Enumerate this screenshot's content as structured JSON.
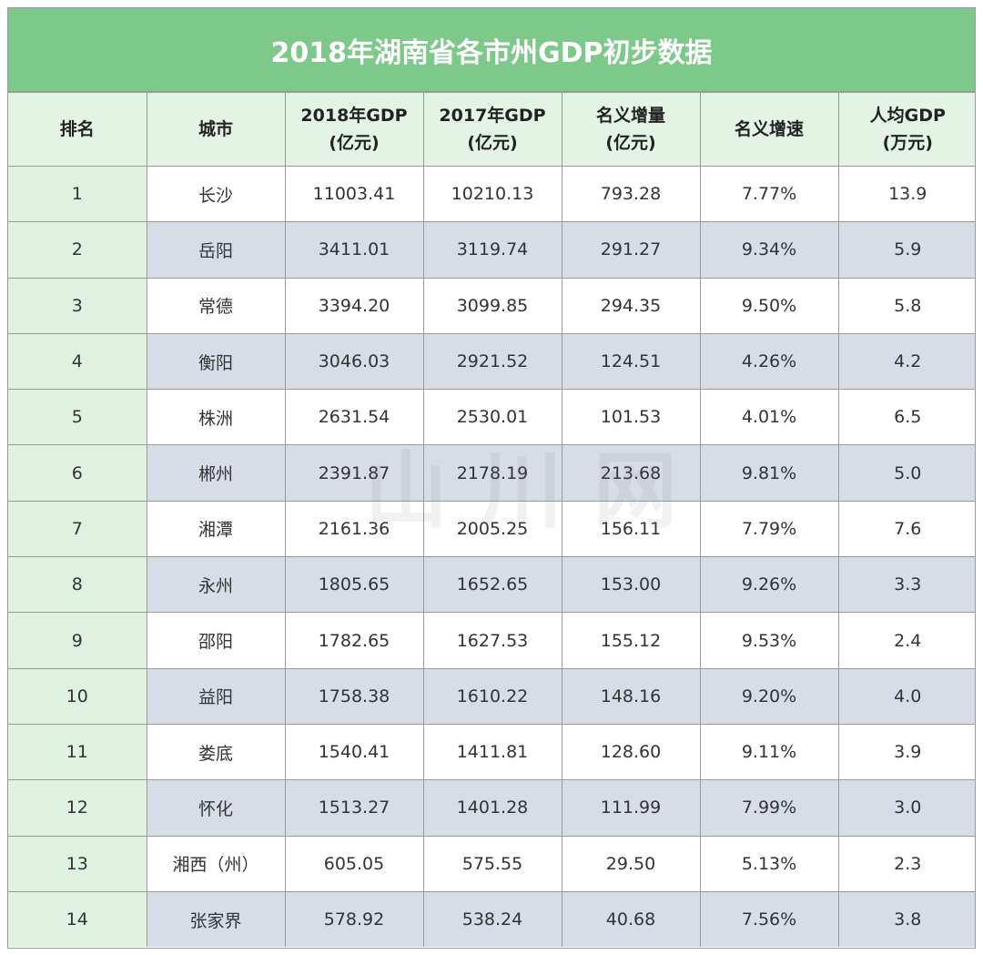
{
  "title": "2018年湖南省各市州GDP初步数据",
  "headers": [
    {
      "line1": "排名",
      "line2": ""
    },
    {
      "line1": "城市",
      "line2": ""
    },
    {
      "line1": "2018年GDP",
      "line2": "(亿元)"
    },
    {
      "line1": "2017年GDP",
      "line2": "(亿元)"
    },
    {
      "line1": "名义增量",
      "line2": "(亿元)"
    },
    {
      "line1": "名义增速",
      "line2": ""
    },
    {
      "line1": "人均GDP",
      "line2": "(万元)"
    }
  ],
  "rows": [
    [
      "1",
      "长沙",
      "11003.41",
      "10210.13",
      "793.28",
      "7.77%",
      "13.9"
    ],
    [
      "2",
      "岳阳",
      "3411.01",
      "3119.74",
      "291.27",
      "9.34%",
      "5.9"
    ],
    [
      "3",
      "常德",
      "3394.20",
      "3099.85",
      "294.35",
      "9.50%",
      "5.8"
    ],
    [
      "4",
      "衡阳",
      "3046.03",
      "2921.52",
      "124.51",
      "4.26%",
      "4.2"
    ],
    [
      "5",
      "株洲",
      "2631.54",
      "2530.01",
      "101.53",
      "4.01%",
      "6.5"
    ],
    [
      "6",
      "郴州",
      "2391.87",
      "2178.19",
      "213.68",
      "9.81%",
      "5.0"
    ],
    [
      "7",
      "湘潭",
      "2161.36",
      "2005.25",
      "156.11",
      "7.79%",
      "7.6"
    ],
    [
      "8",
      "永州",
      "1805.65",
      "1652.65",
      "153.00",
      "9.26%",
      "3.3"
    ],
    [
      "9",
      "邵阳",
      "1782.65",
      "1627.53",
      "155.12",
      "9.53%",
      "2.4"
    ],
    [
      "10",
      "益阳",
      "1758.38",
      "1610.22",
      "148.16",
      "9.20%",
      "4.0"
    ],
    [
      "11",
      "娄底",
      "1540.41",
      "1411.81",
      "128.60",
      "9.11%",
      "3.9"
    ],
    [
      "12",
      "怀化",
      "1513.27",
      "1401.28",
      "111.99",
      "7.99%",
      "3.0"
    ],
    [
      "13",
      "湘西（州）",
      "605.05",
      "575.55",
      "29.50",
      "5.13%",
      "2.3"
    ],
    [
      "14",
      "张家界",
      "578.92",
      "538.24",
      "40.68",
      "7.56%",
      "3.8"
    ]
  ],
  "watermark": "山川网",
  "colors": {
    "title_bg": "#7cc98a",
    "header_bg": "#e3f4e5",
    "rank_bg": "#dff1e1",
    "alt_row_bg": "#d7dde6"
  }
}
